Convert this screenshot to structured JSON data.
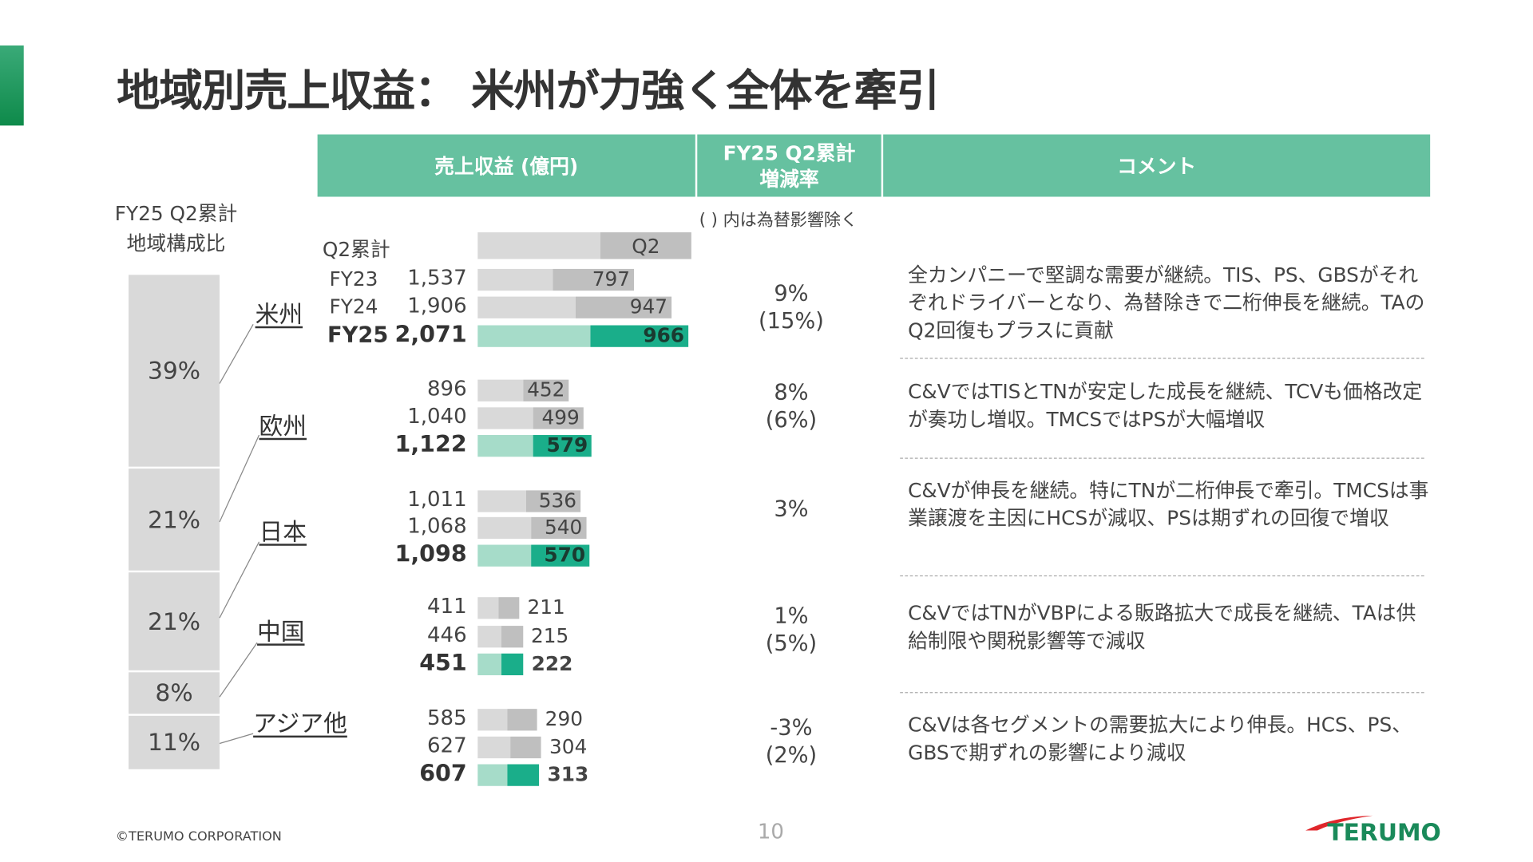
{
  "title": "地域別売上収益： 米州が力強く全体を牽引",
  "header": {
    "col1": "売上収益 (億円)",
    "col2_line1": "FY25 Q2累計",
    "col2_line2": "増減率",
    "col3": "コメント"
  },
  "note": "( ) 内は為替影響除く",
  "left": {
    "line1": "FY25 Q2累計",
    "line2": "地域構成比"
  },
  "legend": {
    "cumulative": "Q2累計",
    "q2": "Q2"
  },
  "colors": {
    "header": "#66c1a0",
    "fy25_light": "#a6dcc9",
    "fy25_dark": "#1aae8a",
    "prior_light": "#d9d9d9",
    "prior_dark": "#bfbfbf"
  },
  "fy_labels": [
    "FY23",
    "FY24",
    "FY25"
  ],
  "chart_data": {
    "type": "bar",
    "regions": [
      {
        "name": "米州",
        "share": "39%",
        "totals": [
          1537,
          1906,
          2071
        ],
        "totals_text": [
          "1,537",
          "1,906",
          "2,071"
        ],
        "q2": [
          797,
          947,
          966
        ],
        "growth": "9%",
        "growth_fx": "(15%)",
        "comment": "全カンパニーで堅調な需要が継続。TIS、PS、GBSがそれぞれドライバーとなり、為替除きで二桁伸長を継続。TAのQ2回復もプラスに貢献"
      },
      {
        "name": "欧州",
        "share": "21%",
        "totals": [
          896,
          1040,
          1122
        ],
        "totals_text": [
          "896",
          "1,040",
          "1,122"
        ],
        "q2": [
          452,
          499,
          579
        ],
        "growth": "8%",
        "growth_fx": "(6%)",
        "comment": "C&VではTISとTNが安定した成長を継続、TCVも価格改定が奏功し増収。TMCSではPSが大幅増収"
      },
      {
        "name": "日本",
        "share": "21%",
        "totals": [
          1011,
          1068,
          1098
        ],
        "totals_text": [
          "1,011",
          "1,068",
          "1,098"
        ],
        "q2": [
          536,
          540,
          570
        ],
        "growth": "3%",
        "growth_fx": "",
        "comment": "C&Vが伸長を継続。特にTNが二桁伸長で牽引。TMCSは事業譲渡を主因にHCSが減収、PSは期ずれの回復で増収"
      },
      {
        "name": "中国",
        "share": "8%",
        "totals": [
          411,
          446,
          451
        ],
        "totals_text": [
          "411",
          "446",
          "451"
        ],
        "q2": [
          211,
          215,
          222
        ],
        "growth": "1%",
        "growth_fx": "(5%)",
        "comment": "C&VではTNがVBPによる販路拡大で成長を継続、TAは供給制限や関税影響等で減収"
      },
      {
        "name": "アジア他",
        "share": "11%",
        "totals": [
          585,
          627,
          607
        ],
        "totals_text": [
          "585",
          "627",
          "607"
        ],
        "q2": [
          290,
          304,
          313
        ],
        "growth": "-3%",
        "growth_fx": "(2%)",
        "comment": "C&Vは各セグメントの需要拡大により伸長。HCS、PS、GBSで期ずれの影響により減収"
      }
    ],
    "shares_stack": [
      "39%",
      "21%",
      "21%",
      "8%",
      "11%"
    ]
  },
  "footer": {
    "copyright": "©TERUMO CORPORATION",
    "page": "10",
    "logo": "TERUMO"
  }
}
